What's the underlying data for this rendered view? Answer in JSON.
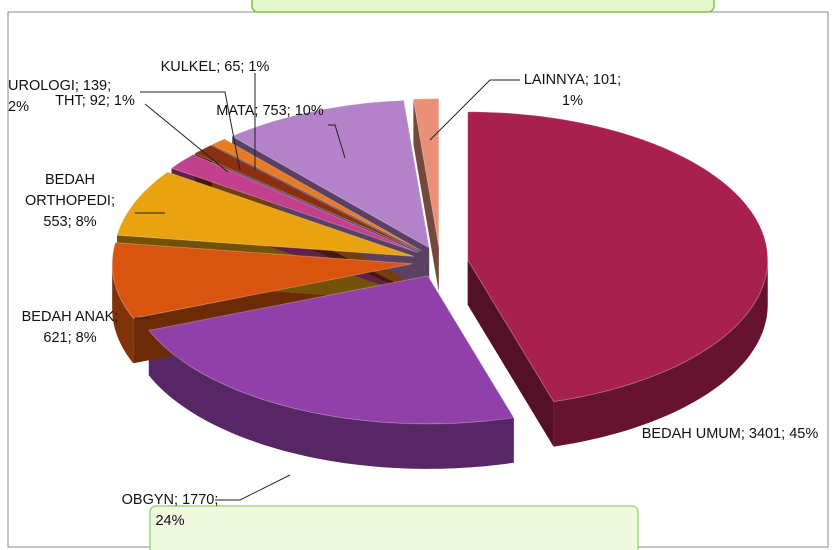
{
  "chart_data": {
    "type": "pie",
    "values": [
      3401,
      1770,
      621,
      553,
      139,
      92,
      65,
      753,
      101
    ],
    "value_labels": [
      "BEDAH UMUM; 3401; 45%",
      "OBGYN; 1770; 24%",
      "BEDAH ANAK; 621; 8%",
      "BEDAH ORTHOPEDI; 553; 8%",
      "UROLOGI; 139; 2%",
      "THT; 92; 1%",
      "KULKEL; 65; 1%",
      "MATA; 753; 10%",
      "LAINNYA; 101; 1%"
    ],
    "colors": [
      "#a8204e",
      "#9040a8",
      "#d9540f",
      "#e9a210",
      "#c2408e",
      "#8a3010",
      "#e87a22",
      "#b482c8",
      "#ea9078"
    ],
    "style": "3d-exploded"
  }
}
